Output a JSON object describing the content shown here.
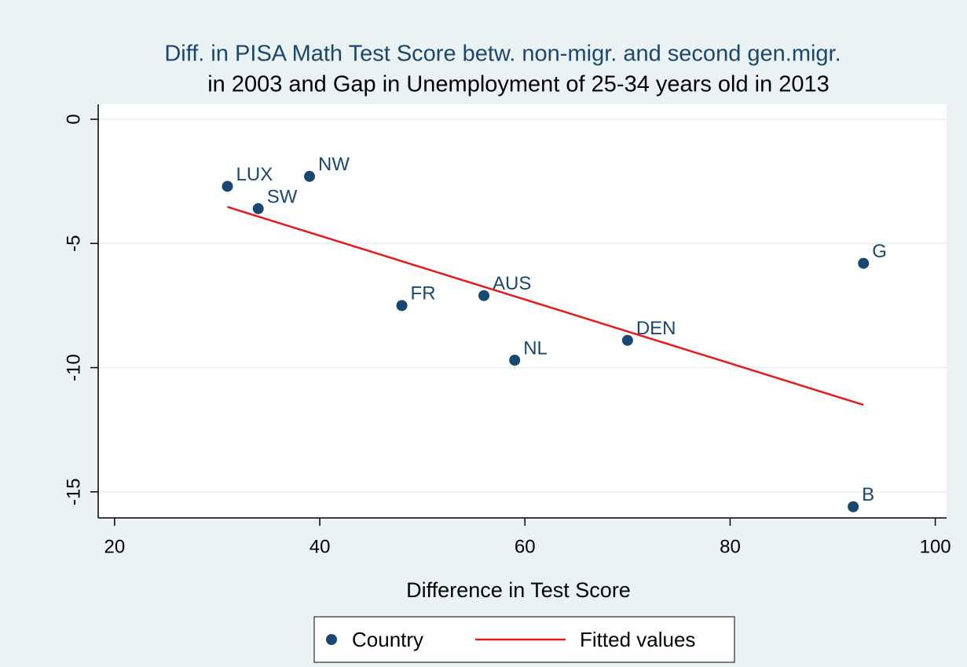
{
  "chart_data": {
    "type": "scatter",
    "title": [
      "Diff. in PISA Math Test Score betw. non-migr. and second gen.migr.",
      "in 2003 and Gap in Unemployment of 25-34 years old in 2013"
    ],
    "x_label": "Difference in Test Score",
    "series": [
      {
        "name": "Country",
        "type": "scatter",
        "color": "#1a476f",
        "x": [
          31,
          39,
          34,
          48,
          56,
          59,
          70,
          93,
          92
        ],
        "values": [
          -2.7,
          -2.3,
          -3.6,
          -7.5,
          -7.1,
          -9.7,
          -8.9,
          -5.8,
          -15.6
        ],
        "point_labels": [
          "LUX",
          "NW",
          "SW",
          "FR",
          "AUS",
          "NL",
          "DEN",
          "G",
          "B"
        ]
      },
      {
        "name": "Fitted values",
        "type": "line",
        "color": "#e41a1c",
        "x": [
          31,
          93
        ],
        "values": [
          -3.53,
          -11.5
        ]
      }
    ],
    "xlim": [
      18.4,
      101.1
    ],
    "ylim": [
      -16.05,
      0.6
    ],
    "xticks": [
      20,
      40,
      60,
      80,
      100
    ],
    "yticks": [
      0,
      -5,
      -10,
      -15
    ],
    "grid": true,
    "legend": "bottom"
  }
}
